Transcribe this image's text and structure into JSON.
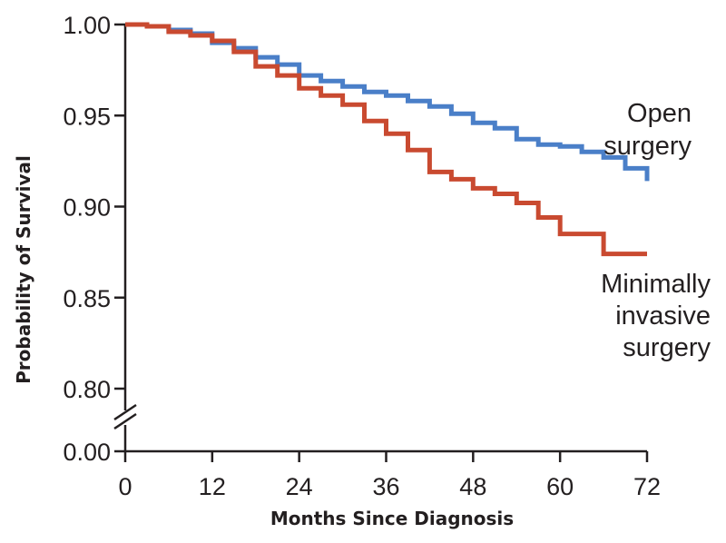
{
  "chart_data": {
    "type": "line",
    "title": "",
    "xlabel": "Months Since Diagnosis",
    "ylabel": "Probability of Survival",
    "xlim": [
      0,
      72
    ],
    "ylim": [
      0.8,
      1.0
    ],
    "axis_break": true,
    "x_ticks": [
      "0",
      "12",
      "24",
      "36",
      "48",
      "60",
      "72"
    ],
    "x_tick_values": [
      0,
      12,
      24,
      36,
      48,
      60,
      72
    ],
    "y_ticks": [
      "0.80",
      "0.85",
      "0.90",
      "0.95",
      "1.00"
    ],
    "y_tick_values": [
      0.8,
      0.85,
      0.9,
      0.95,
      1.0
    ],
    "y_break_tick": "0.00",
    "grid": false,
    "legend": "inline labels at right end of curves",
    "series": [
      {
        "name": "Open surgery",
        "label_lines": [
          "Open",
          "surgery"
        ],
        "color": "#4a7fc8",
        "x": [
          0,
          3,
          6,
          9,
          12,
          15,
          18,
          21,
          24,
          27,
          30,
          33,
          36,
          39,
          42,
          45,
          48,
          51,
          54,
          57,
          60,
          63,
          66,
          69,
          72
        ],
        "y": [
          1.0,
          0.999,
          0.997,
          0.995,
          0.99,
          0.987,
          0.982,
          0.978,
          0.972,
          0.969,
          0.966,
          0.963,
          0.961,
          0.958,
          0.955,
          0.951,
          0.946,
          0.943,
          0.937,
          0.934,
          0.933,
          0.93,
          0.927,
          0.921,
          0.914
        ]
      },
      {
        "name": "Minimally invasive surgery",
        "label_lines": [
          "Minimally",
          "invasive",
          "surgery"
        ],
        "color": "#c94a30",
        "x": [
          0,
          3,
          6,
          9,
          12,
          15,
          18,
          21,
          24,
          27,
          30,
          33,
          36,
          39,
          42,
          45,
          48,
          51,
          54,
          57,
          60,
          63,
          66,
          69,
          72
        ],
        "y": [
          1.0,
          0.999,
          0.996,
          0.994,
          0.991,
          0.985,
          0.977,
          0.972,
          0.965,
          0.961,
          0.956,
          0.947,
          0.94,
          0.931,
          0.919,
          0.915,
          0.91,
          0.907,
          0.902,
          0.894,
          0.885,
          0.885,
          0.874,
          0.874,
          0.874
        ]
      }
    ]
  }
}
